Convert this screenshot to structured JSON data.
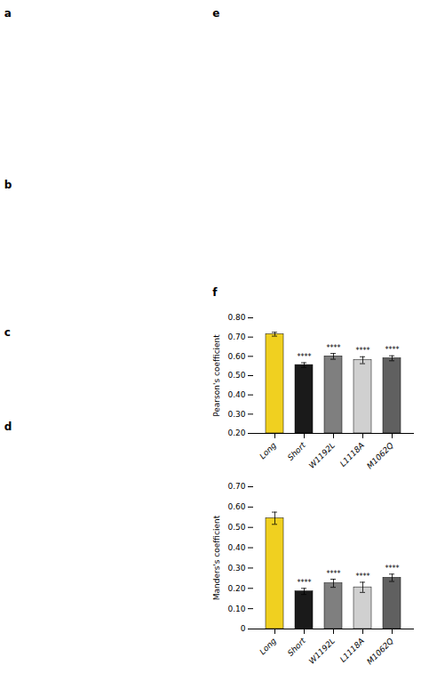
{
  "chart_data": [
    {
      "type": "bar",
      "categories": [
        "Long",
        "Short",
        "W1192L",
        "L1118A",
        "M1062Q"
      ],
      "values": [
        0.715,
        0.555,
        0.6,
        0.58,
        0.59
      ],
      "errors": [
        0.01,
        0.012,
        0.015,
        0.018,
        0.013
      ],
      "colors": [
        "#f0d020",
        "#1a1a1a",
        "#7f7f7f",
        "#d0d0d0",
        "#606060"
      ],
      "ylabel": "Pearson's coefficient",
      "ylim": [
        0.2,
        0.8
      ],
      "yticks": [
        {
          "value": 0.2,
          "label": "0.20"
        },
        {
          "value": 0.3,
          "label": "0.30"
        },
        {
          "value": 0.4,
          "label": "0.40"
        },
        {
          "value": 0.5,
          "label": "0.50"
        },
        {
          "value": 0.6,
          "label": "0.60"
        },
        {
          "value": 0.7,
          "label": "0.70"
        },
        {
          "value": 0.8,
          "label": "0.80"
        }
      ],
      "annotations": [
        {
          "category": "Short",
          "text": "****"
        },
        {
          "category": "W1192L",
          "text": "****"
        },
        {
          "category": "L1118A",
          "text": "****"
        },
        {
          "category": "M1062Q",
          "text": "****"
        }
      ]
    },
    {
      "type": "bar",
      "categories": [
        "Long",
        "Short",
        "W1192L",
        "L1118A",
        "M1062Q"
      ],
      "values": [
        0.545,
        0.185,
        0.225,
        0.205,
        0.252
      ],
      "errors": [
        0.03,
        0.015,
        0.02,
        0.025,
        0.018
      ],
      "colors": [
        "#f0d020",
        "#1a1a1a",
        "#7f7f7f",
        "#d0d0d0",
        "#606060"
      ],
      "ylabel": "Manders's coefficient",
      "ylim": [
        0.0,
        0.7
      ],
      "yticks": [
        0,
        {
          "value": 0.1,
          "label": "0.10"
        },
        {
          "value": 0.2,
          "label": "0.20"
        },
        {
          "value": 0.3,
          "label": "0.30"
        },
        {
          "value": 0.4,
          "label": "0.40"
        },
        {
          "value": 0.5,
          "label": "0.50"
        },
        {
          "value": 0.6,
          "label": "0.60"
        },
        {
          "value": 0.7,
          "label": "0.70"
        }
      ],
      "annotations": [
        {
          "category": "Short",
          "text": "****"
        },
        {
          "category": "W1192L",
          "text": "****"
        },
        {
          "category": "L1118A",
          "text": "****"
        },
        {
          "category": "M1062Q",
          "text": "****"
        }
      ]
    }
  ],
  "panel_labels": [
    "a",
    "b",
    "c",
    "d",
    "e",
    "f"
  ]
}
